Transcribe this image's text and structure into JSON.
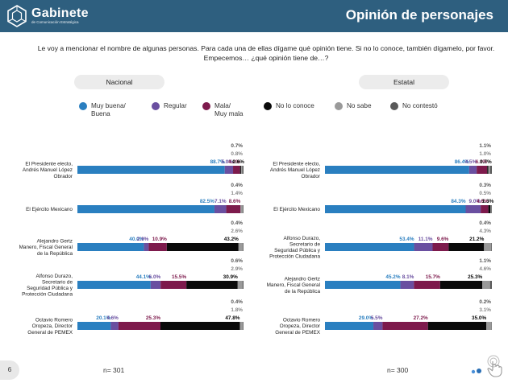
{
  "header": {
    "logo_name": "Gabinete",
    "logo_subtitle": "de Comunicación Estratégica",
    "title": "Opinión de personajes",
    "background": "#2e5f7f"
  },
  "question": "Le voy a mencionar el nombre de algunas personas. Para cada una de ellas dígame qué opinión tiene. Si no lo conoce, también dígamelo, por favor. Empecemos… ¿qué opinión tiene de…?",
  "legend": [
    {
      "label": "Muy buena/\nBuena",
      "color": "#2a7fc0"
    },
    {
      "label": "Regular",
      "color": "#6a4fa0"
    },
    {
      "label": "Mala/\nMuy mala",
      "color": "#7d1a4c"
    },
    {
      "label": "No lo conoce",
      "color": "#0a0a0a"
    },
    {
      "label": "No sabe",
      "color": "#9a9a9a"
    },
    {
      "label": "No contestó",
      "color": "#5a5a5a"
    }
  ],
  "footer": {
    "slide_number": "6",
    "n_nacional": "n= 301",
    "n_estatal": "n= 300"
  },
  "chart_data": [
    {
      "type": "bar",
      "stacked": true,
      "orientation": "horizontal",
      "title": "Nacional",
      "series_names": [
        "Muy buena/Buena",
        "Regular",
        "Mala/Muy mala",
        "No lo conoce",
        "No sabe",
        "No contestó"
      ],
      "colors": [
        "#2a7fc0",
        "#6a4fa0",
        "#7d1a4c",
        "#0a0a0a",
        "#9a9a9a",
        "#5a5a5a"
      ],
      "label_colors": [
        "#2a7fc0",
        "#6a4fa0",
        "#7d1a4c",
        "#0a0a0a",
        "#888888",
        "#555555"
      ],
      "categories": [
        "El Presidente electo, Andrés Manuel López Obrador",
        "El Ejército Mexicano",
        "Alejandro Gertz Manero, Fiscal General de la República",
        "Alfonso Durazo, Secretario de Seguridad Pública y Protección Ciudadana",
        "Octavio Romero Oropeza, Director General de PEMEX"
      ],
      "values": [
        [
          88.7,
          5.0,
          4.2,
          0.6,
          0.8,
          0.7
        ],
        [
          82.5,
          7.1,
          8.6,
          0.0,
          1.4,
          0.4
        ],
        [
          40.0,
          2.9,
          10.9,
          43.2,
          2.6,
          0.4
        ],
        [
          44.1,
          6.0,
          15.5,
          30.9,
          2.9,
          0.6
        ],
        [
          20.1,
          4.6,
          25.3,
          47.8,
          1.8,
          0.4
        ]
      ],
      "labels": [
        [
          "88.7%",
          "5.0%",
          "4.2%",
          "0.6%",
          "0.8%",
          "0.7%"
        ],
        [
          "82.5%",
          "7.1%",
          "8.6%",
          "",
          "1.4%",
          "0.4%"
        ],
        [
          "40.0%",
          "2.9%",
          "10.9%",
          "43.2%",
          "2.6%",
          "0.4%"
        ],
        [
          "44.1%",
          "6.0%",
          "15.5%",
          "30.9%",
          "2.9%",
          "0.6%"
        ],
        [
          "20.1%",
          "4.6%",
          "25.3%",
          "47.8%",
          "1.8%",
          "0.4%"
        ]
      ],
      "xlim": [
        0,
        100
      ]
    },
    {
      "type": "bar",
      "stacked": true,
      "orientation": "horizontal",
      "title": "Estatal",
      "series_names": [
        "Muy buena/Buena",
        "Regular",
        "Mala/Muy mala",
        "No lo conoce",
        "No sabe",
        "No contestó"
      ],
      "colors": [
        "#2a7fc0",
        "#6a4fa0",
        "#7d1a4c",
        "#0a0a0a",
        "#9a9a9a",
        "#5a5a5a"
      ],
      "label_colors": [
        "#2a7fc0",
        "#6a4fa0",
        "#7d1a4c",
        "#0a0a0a",
        "#888888",
        "#555555"
      ],
      "categories": [
        "El Presidente electo, Andrés Manuel López Obrador",
        "El Ejército Mexicano",
        "Alfonso Durazo, Secretario de Seguridad Pública y Protección Ciudadana",
        "Alejandro Gertz Manero, Fiscal General de la República",
        "Octavio Romero Oropeza, Director General de PEMEX"
      ],
      "values": [
        [
          86.4,
          4.5,
          6.3,
          0.7,
          1.0,
          1.1
        ],
        [
          84.3,
          9.0,
          4.6,
          1.3,
          0.5,
          0.3
        ],
        [
          53.4,
          11.1,
          9.6,
          21.2,
          4.3,
          0.4
        ],
        [
          45.2,
          8.1,
          15.7,
          25.3,
          4.6,
          1.1
        ],
        [
          29.0,
          5.5,
          27.2,
          35.0,
          3.1,
          0.2
        ]
      ],
      "labels": [
        [
          "86.4%",
          "4.5%",
          "6.3%",
          "0.7%",
          "1.0%",
          "1.1%"
        ],
        [
          "84.3%",
          "9.0%",
          "4.6%",
          "1.3%",
          "0.5%",
          "0.3%"
        ],
        [
          "53.4%",
          "11.1%",
          "9.6%",
          "21.2%",
          "4.3%",
          "0.4%"
        ],
        [
          "45.2%",
          "8.1%",
          "15.7%",
          "25.3%",
          "4.6%",
          "1.1%"
        ],
        [
          "29.0%",
          "5.5%",
          "27.2%",
          "35.0%",
          "3.1%",
          "0.2%"
        ]
      ],
      "xlim": [
        0,
        100
      ]
    }
  ]
}
